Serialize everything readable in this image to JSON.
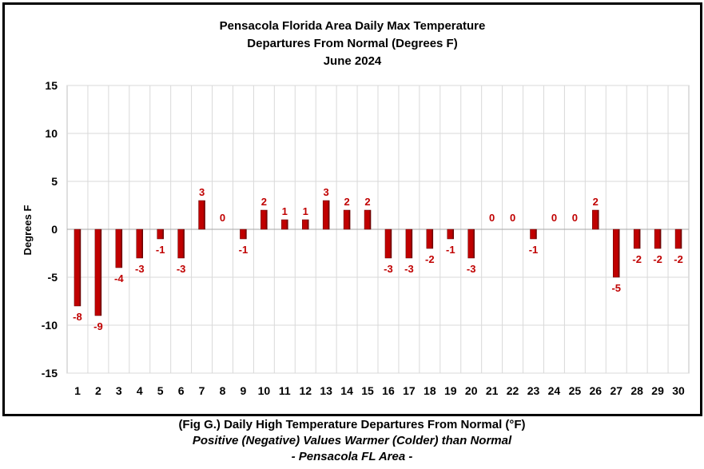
{
  "chart_data": {
    "type": "bar",
    "title": [
      "Pensacola Florida Area Daily Max Temperature",
      "Departures From Normal (Degrees F)",
      "June 2024"
    ],
    "ylabel": "Degrees F",
    "xlabel": "",
    "ylim": [
      -15,
      15
    ],
    "yticks": [
      15,
      10,
      5,
      0,
      -5,
      -10,
      -15
    ],
    "grid": true,
    "categories": [
      "1",
      "2",
      "3",
      "4",
      "5",
      "6",
      "7",
      "8",
      "9",
      "10",
      "11",
      "12",
      "13",
      "14",
      "15",
      "16",
      "17",
      "18",
      "19",
      "20",
      "21",
      "22",
      "23",
      "24",
      "25",
      "26",
      "27",
      "28",
      "29",
      "30"
    ],
    "values": [
      -8,
      -9,
      -4,
      -3,
      -1,
      -3,
      3,
      0,
      -1,
      2,
      1,
      1,
      3,
      2,
      2,
      -3,
      -3,
      -2,
      -1,
      -3,
      0,
      0,
      -1,
      0,
      0,
      2,
      -5,
      -2,
      -2,
      -2
    ],
    "bar_color": "#c00000",
    "bar_dark": "#600000",
    "label_color": "#c00000"
  },
  "caption": {
    "line1": "(Fig G.) Daily High Temperature Departures From Normal (°F)",
    "line2": "Positive (Negative) Values Warmer (Colder) than Normal",
    "line3": "- Pensacola FL Area -"
  }
}
